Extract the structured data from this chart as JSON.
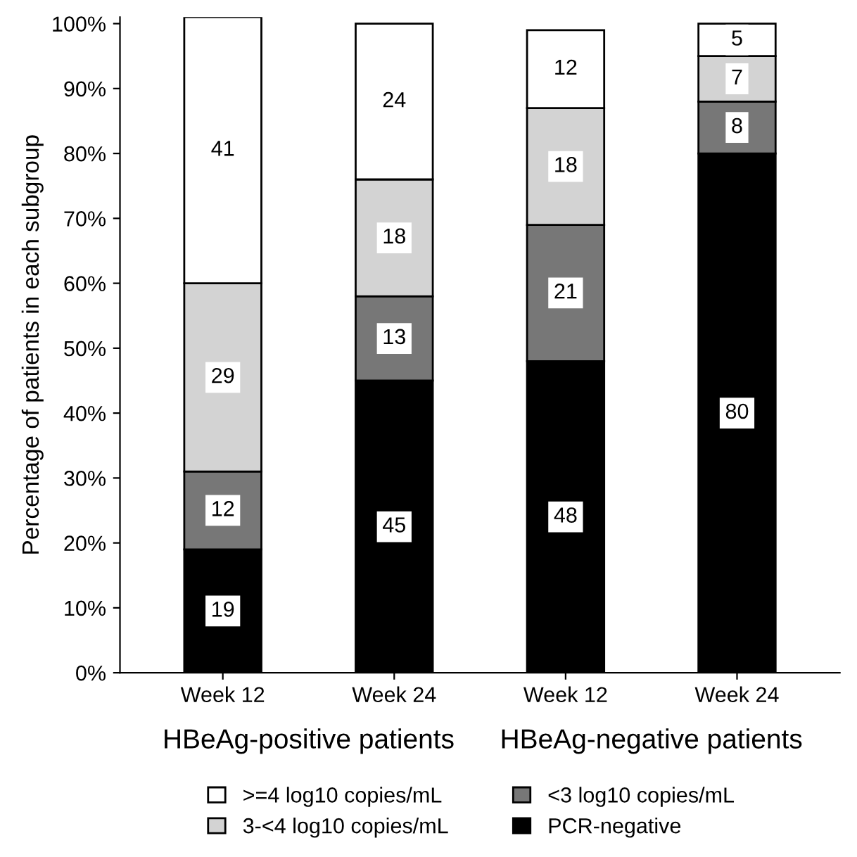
{
  "chart_data": {
    "type": "bar",
    "stacked": true,
    "ylabel": "Percentage of patients in each subgroup",
    "categories": [
      "Week 12",
      "Week 24",
      "Week 12",
      "Week 24"
    ],
    "series": [
      {
        "name": "PCR-negative",
        "color": "#000000",
        "values": [
          19,
          45,
          48,
          80
        ]
      },
      {
        "name": "<3 log10 copies/mL",
        "color": "#777777",
        "values": [
          12,
          13,
          21,
          8
        ]
      },
      {
        "name": "3-<4 log10 copies/mL",
        "color": "#d3d3d3",
        "values": [
          29,
          18,
          18,
          7
        ]
      },
      {
        "name": ">=4 log10 copies/mL",
        "color": "#ffffff",
        "values": [
          41,
          24,
          12,
          5
        ]
      }
    ],
    "ylim": [
      0,
      101
    ],
    "yticks": [
      {
        "value": 0,
        "label": "0%"
      },
      {
        "value": 10,
        "label": "10%"
      },
      {
        "value": 20,
        "label": "20%"
      },
      {
        "value": 30,
        "label": "30%"
      },
      {
        "value": 40,
        "label": "40%"
      },
      {
        "value": 50,
        "label": "50%"
      },
      {
        "value": 60,
        "label": "60%"
      },
      {
        "value": 70,
        "label": "70%"
      },
      {
        "value": 80,
        "label": "80%"
      },
      {
        "value": 90,
        "label": "90%"
      },
      {
        "value": 100,
        "label": "100%"
      }
    ],
    "data_labels": true,
    "grid": false,
    "legend": "bottom",
    "annotations": [
      "HBeAg-positive patients",
      "HBeAg-negative patients"
    ]
  }
}
